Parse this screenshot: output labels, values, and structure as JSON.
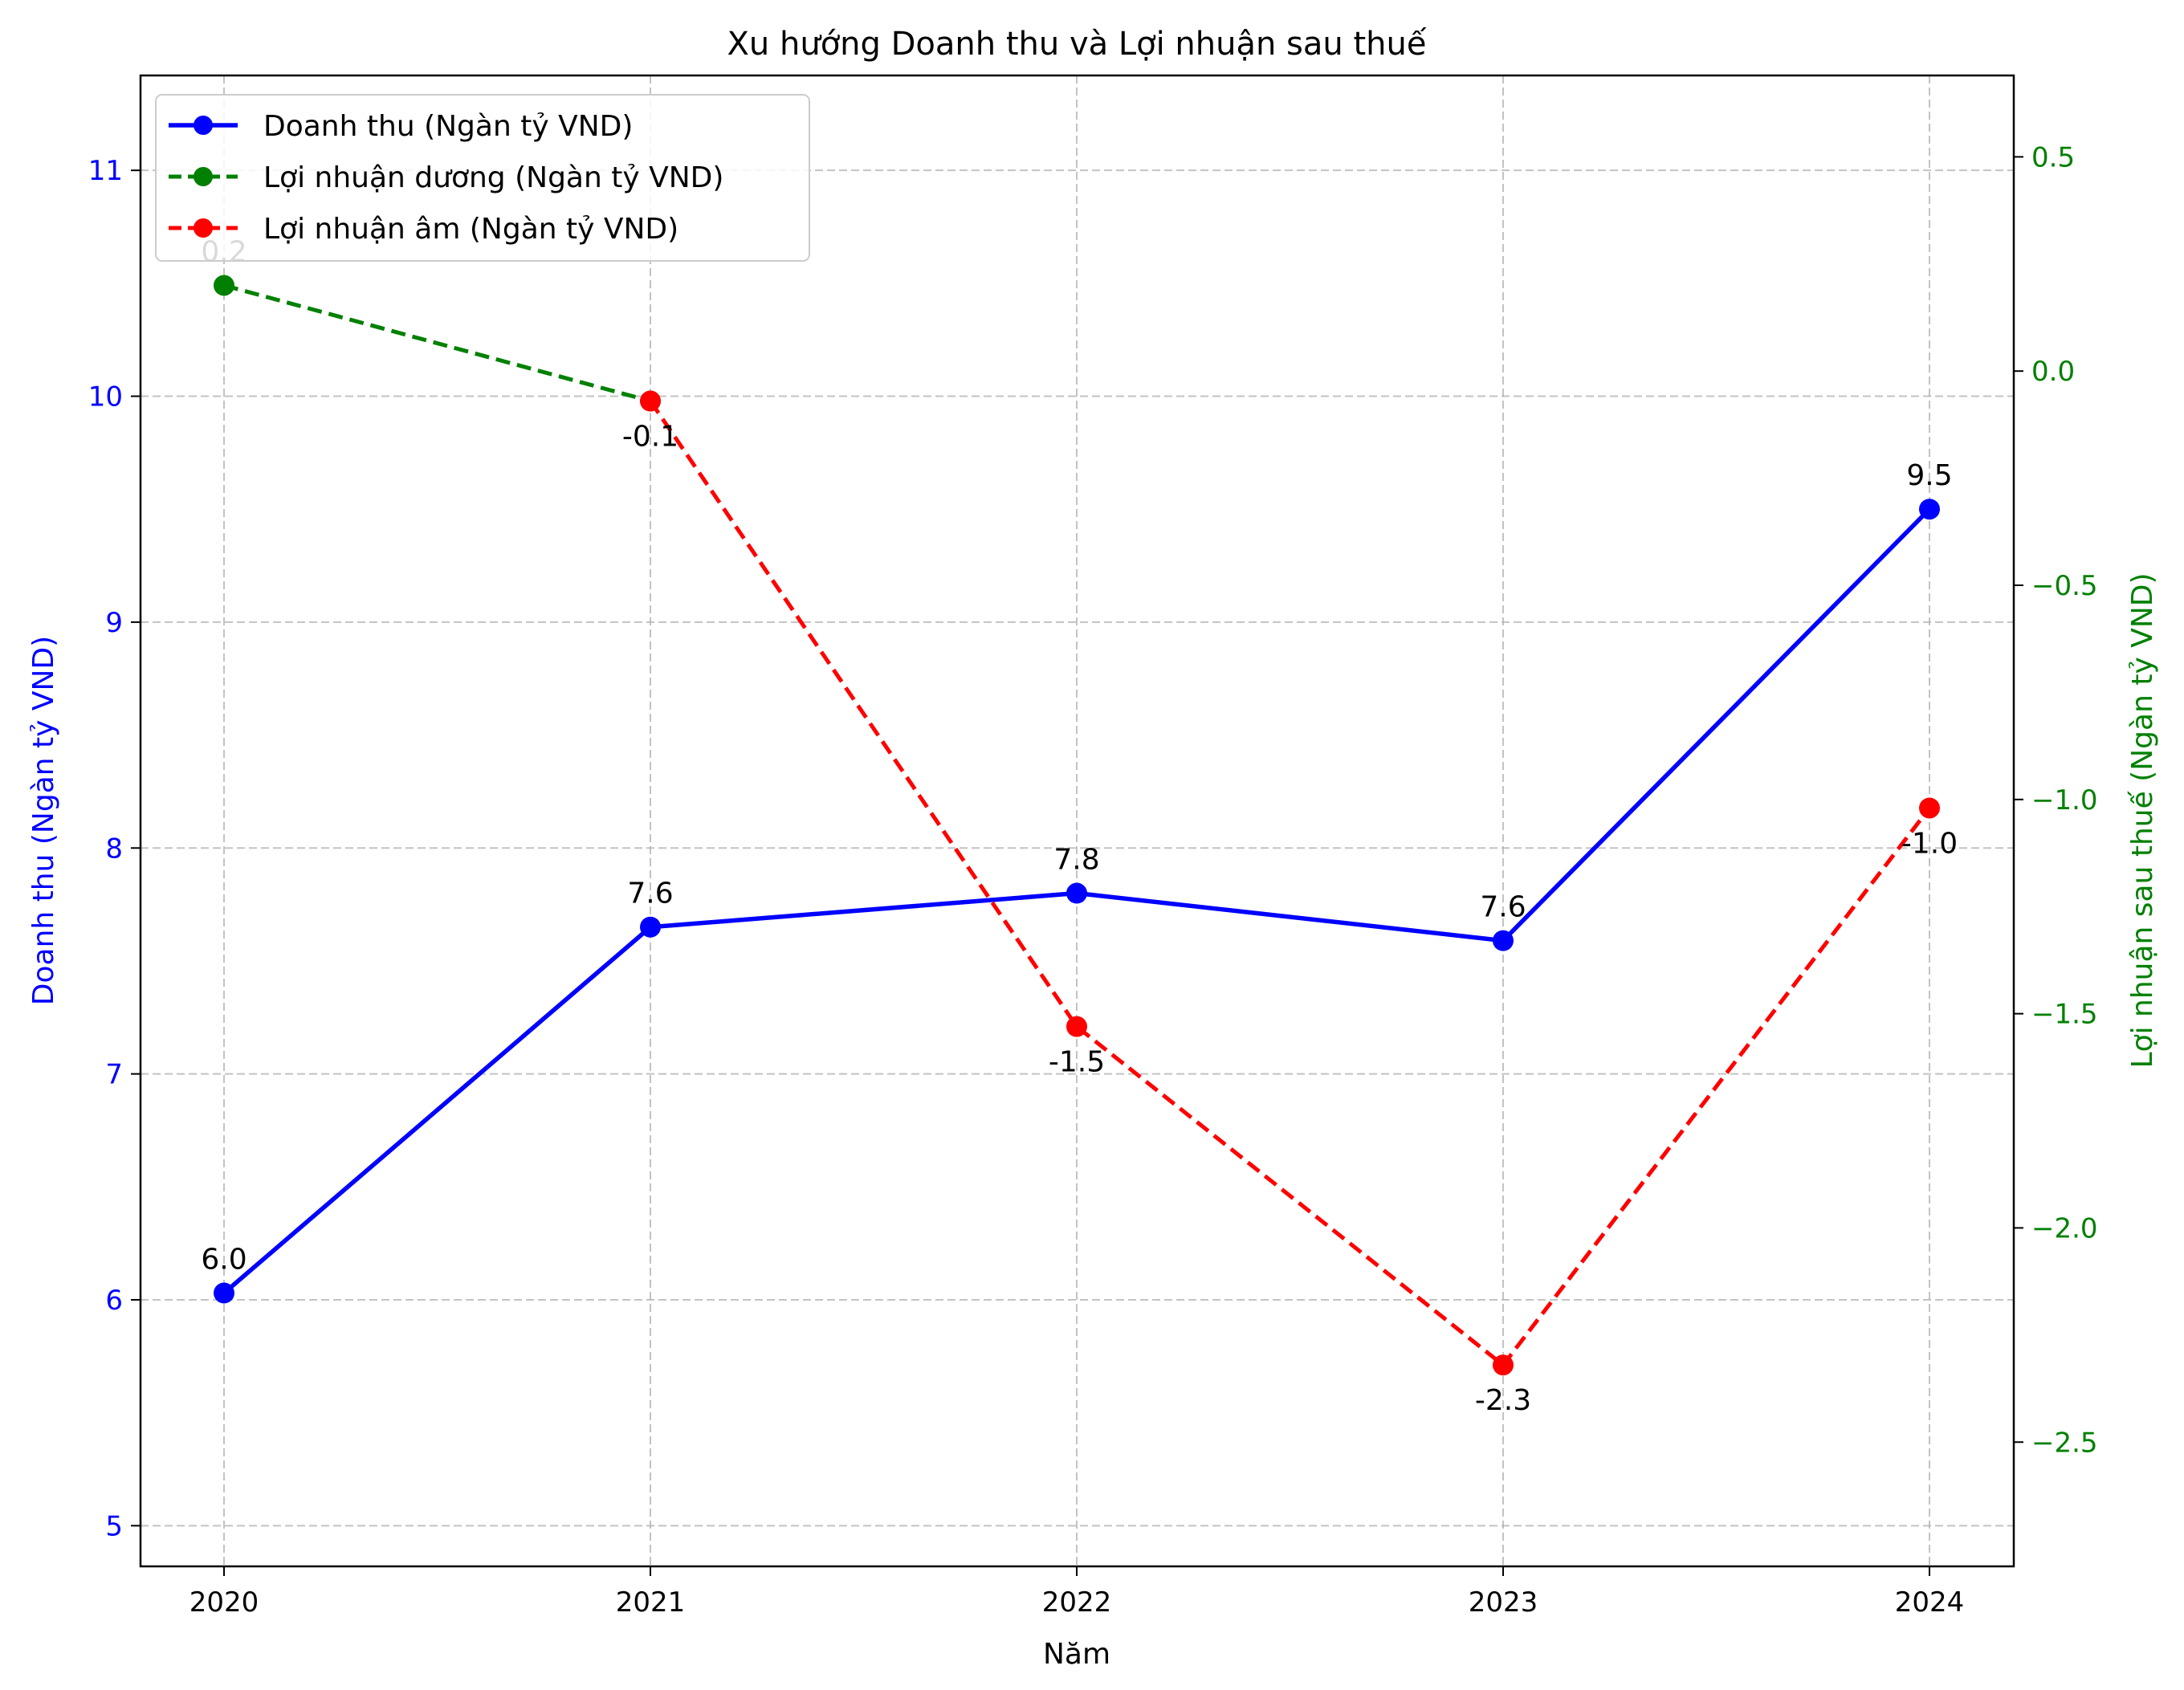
{
  "chart_data": {
    "type": "line",
    "title": "Xu hướng Doanh thu và Lợi nhuận sau thuế",
    "xlabel": "Năm",
    "ylabel_left": "Doanh thu (Ngàn tỷ VND)",
    "ylabel_right": "Lợi nhuận sau thuế (Ngàn tỷ VND)",
    "categories": [
      "2020",
      "2021",
      "2022",
      "2023",
      "2024"
    ],
    "ylim_left": [
      4.82,
      11.42
    ],
    "ylim_right": [
      -2.79,
      0.69
    ],
    "yticks_left": [
      "5",
      "6",
      "7",
      "8",
      "9",
      "10",
      "11"
    ],
    "yticks_right": [
      "0.5",
      "0.0",
      "−0.5",
      "−1.0",
      "−1.5",
      "−2.0",
      "−2.5"
    ],
    "grid": true,
    "legend_position": "top-left",
    "colors": {
      "revenue": "#0000ff",
      "profit_positive": "#008000",
      "profit_negative": "#ff0000",
      "grid": "#b0b0b0"
    },
    "series": [
      {
        "name": "Doanh thu (Ngàn tỷ VND)",
        "axis": "left",
        "values": [
          6.03,
          7.65,
          7.8,
          7.59,
          9.5
        ],
        "labels": [
          "6.0",
          "7.6",
          "7.8",
          "7.6",
          "9.5"
        ]
      },
      {
        "name": "Lợi nhuận dương (Ngàn tỷ VND)",
        "axis": "right",
        "values": [
          0.2,
          -0.07,
          null,
          null,
          null
        ],
        "labels": [
          "0.2",
          null,
          null,
          null,
          null
        ]
      },
      {
        "name": "Lợi nhuận âm (Ngàn tỷ VND)",
        "axis": "right",
        "values": [
          null,
          -0.07,
          -1.53,
          -2.32,
          -1.02
        ],
        "labels": [
          null,
          "-0.1",
          "-1.5",
          "-2.3",
          "-1.0"
        ]
      }
    ]
  }
}
